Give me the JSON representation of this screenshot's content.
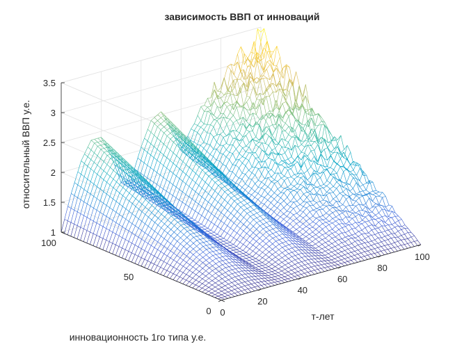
{
  "chart_data": {
    "type": "surface",
    "title": "зависимость ВВП от инноваций",
    "xlabel": "т-лет",
    "ylabel": "инновационность 1го типа у.е.",
    "zlabel": "относительный ВВП у.е.",
    "xlim": [
      0,
      100
    ],
    "ylim": [
      0,
      100
    ],
    "zlim": [
      1,
      3.5
    ],
    "xticks": [
      0,
      20,
      40,
      60,
      80,
      100
    ],
    "yticks": [
      0,
      50,
      100
    ],
    "zticks": [
      1,
      1.5,
      2,
      2.5,
      3,
      3.5
    ],
    "xtick_labels": [
      "0",
      "20",
      "40",
      "60",
      "80",
      "100"
    ],
    "ytick_labels": [
      "0",
      "50",
      "100"
    ],
    "ztick_labels": [
      "1",
      "1.5",
      "2",
      "2.5",
      "3",
      "3.5"
    ],
    "colormap": "parula",
    "grid": true,
    "z_profile_at_y_100": {
      "x": [
        0,
        5,
        10,
        15,
        20,
        25,
        30,
        35,
        40,
        45,
        50,
        55,
        60,
        65,
        70,
        75,
        80,
        85,
        90,
        95,
        100
      ],
      "z": [
        1.0,
        1.6,
        2.1,
        2.4,
        2.4,
        2.05,
        1.55,
        1.55,
        2.05,
        2.45,
        2.55,
        2.2,
        1.8,
        2.1,
        2.4,
        2.6,
        2.7,
        2.9,
        3.0,
        3.1,
        3.2
      ]
    }
  }
}
